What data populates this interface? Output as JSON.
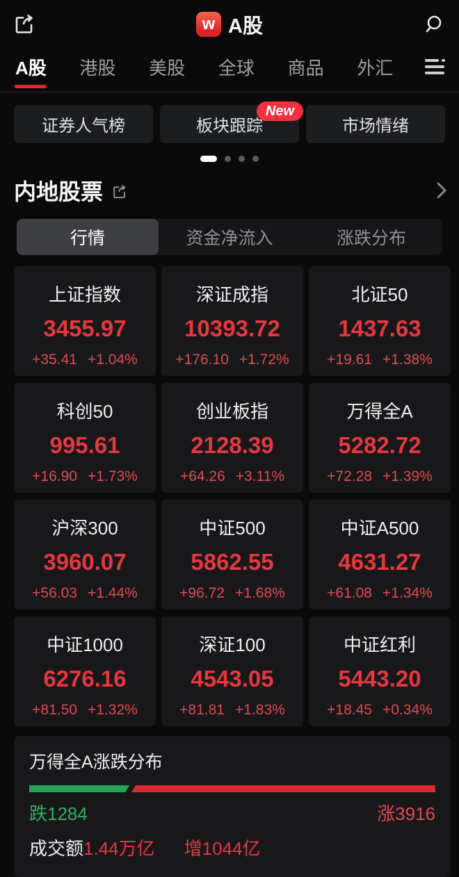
{
  "header": {
    "logo_letter": "w",
    "title": "A股"
  },
  "nav": {
    "items": [
      {
        "label": "A股",
        "active": true
      },
      {
        "label": "港股",
        "active": false
      },
      {
        "label": "美股",
        "active": false
      },
      {
        "label": "全球",
        "active": false
      },
      {
        "label": "商品",
        "active": false
      },
      {
        "label": "外汇",
        "active": false
      }
    ]
  },
  "quick_links": {
    "items": [
      {
        "label": "证券人气榜"
      },
      {
        "label": "板块跟踪",
        "badge": "New"
      },
      {
        "label": "市场情绪"
      }
    ]
  },
  "carousel": {
    "dot_count": 4,
    "active_index": 0
  },
  "section": {
    "title": "内地股票"
  },
  "tabs": {
    "items": [
      {
        "label": "行情",
        "active": true
      },
      {
        "label": "资金净流入",
        "active": false
      },
      {
        "label": "涨跌分布",
        "active": false
      }
    ]
  },
  "indices": [
    {
      "name": "上证指数",
      "price": "3455.97",
      "change": "+35.41",
      "pct": "+1.04%"
    },
    {
      "name": "深证成指",
      "price": "10393.72",
      "change": "+176.10",
      "pct": "+1.72%"
    },
    {
      "name": "北证50",
      "price": "1437.63",
      "change": "+19.61",
      "pct": "+1.38%"
    },
    {
      "name": "科创50",
      "price": "995.61",
      "change": "+16.90",
      "pct": "+1.73%"
    },
    {
      "name": "创业板指",
      "price": "2128.39",
      "change": "+64.26",
      "pct": "+3.11%"
    },
    {
      "name": "万得全A",
      "price": "5282.72",
      "change": "+72.28",
      "pct": "+1.39%"
    },
    {
      "name": "沪深300",
      "price": "3960.07",
      "change": "+56.03",
      "pct": "+1.44%"
    },
    {
      "name": "中证500",
      "price": "5862.55",
      "change": "+96.72",
      "pct": "+1.68%"
    },
    {
      "name": "中证A500",
      "price": "4631.27",
      "change": "+61.08",
      "pct": "+1.34%"
    },
    {
      "name": "中证1000",
      "price": "6276.16",
      "change": "+81.50",
      "pct": "+1.32%"
    },
    {
      "name": "深证100",
      "price": "4543.05",
      "change": "+81.81",
      "pct": "+1.83%"
    },
    {
      "name": "中证红利",
      "price": "5443.20",
      "change": "+18.45",
      "pct": "+0.34%"
    }
  ],
  "distribution": {
    "title": "万得全A涨跌分布",
    "down_label": "跌1284",
    "up_label": "涨3916",
    "down_count": 1284,
    "up_count": 3916
  },
  "turnover": {
    "label": "成交额",
    "value": "1.44万亿",
    "extra": "增1044亿"
  },
  "colors": {
    "up_red": "#e5383e",
    "down_green": "#23a455",
    "accent_red": "#e0292f",
    "badge_red": "#f4303f"
  }
}
